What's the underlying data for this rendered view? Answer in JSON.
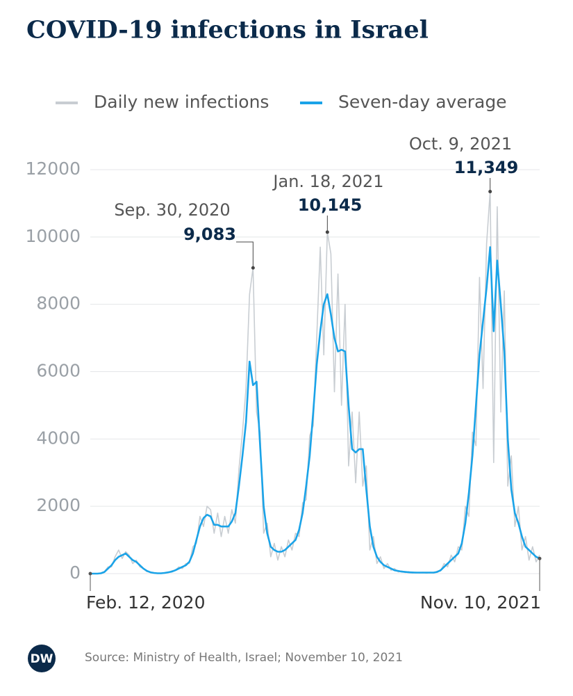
{
  "chart_data": {
    "type": "line",
    "title": "COVID-19 infections in Israel",
    "source": "Source: Ministry of Health, Israel; November 10, 2021",
    "logo": "DW",
    "categories": [
      "Feb. 12, 2020",
      null,
      null,
      null,
      null,
      null,
      null,
      null,
      null,
      null,
      null,
      null,
      null,
      null,
      null,
      null,
      null,
      null,
      null,
      null,
      null,
      null,
      null,
      null,
      null,
      null,
      null,
      null,
      null,
      null,
      null,
      null,
      null,
      null,
      null,
      null,
      null,
      null,
      null,
      null,
      null,
      null,
      null,
      null,
      null,
      null,
      null,
      null,
      null,
      null,
      null,
      null,
      null,
      null,
      null,
      null,
      null,
      null,
      null,
      null,
      null,
      null,
      null,
      null,
      null,
      null,
      null,
      null,
      null,
      null,
      null,
      null,
      null,
      null,
      null,
      null,
      null,
      null,
      null,
      null,
      null,
      null,
      null,
      null,
      null,
      null,
      null,
      null,
      null,
      null,
      null,
      null,
      null,
      null,
      null,
      null,
      null,
      null,
      null,
      null,
      null,
      null,
      null,
      null,
      null,
      null,
      null,
      null,
      null,
      null,
      null,
      null,
      null,
      null,
      null,
      null,
      null,
      null,
      null,
      null,
      null,
      null,
      null,
      null,
      null,
      null,
      null,
      "Nov. 10, 2021"
    ],
    "series": [
      {
        "name": "Daily new infections",
        "color": "#c8cdd2",
        "values": [
          0,
          0,
          0,
          20,
          60,
          200,
          200,
          500,
          700,
          450,
          650,
          550,
          300,
          400,
          200,
          150,
          60,
          50,
          10,
          15,
          5,
          30,
          30,
          80,
          90,
          200,
          150,
          300,
          300,
          800,
          900,
          1700,
          1400,
          2000,
          1900,
          1200,
          1800,
          1100,
          1700,
          1200,
          1900,
          1500,
          3100,
          4200,
          5500,
          8300,
          9083,
          4800,
          4200,
          1200,
          1500,
          500,
          900,
          400,
          800,
          500,
          1000,
          700,
          1200,
          1100,
          2100,
          2200,
          4100,
          4400,
          7000,
          9700,
          6500,
          10145,
          9500,
          5400,
          8900,
          5000,
          8000,
          3200,
          4800,
          2700,
          4800,
          2600,
          3200,
          700,
          1100,
          300,
          500,
          150,
          300,
          100,
          150,
          50,
          80,
          30,
          60,
          20,
          40,
          20,
          40,
          15,
          40,
          20,
          70,
          80,
          300,
          200,
          550,
          350,
          800,
          700,
          2000,
          1700,
          4200,
          3800,
          8800,
          5500,
          9800,
          11349,
          3300,
          10900,
          4800,
          8400,
          2600,
          3500,
          1400,
          2000,
          700,
          1100,
          400,
          800,
          350,
          550
        ]
      },
      {
        "name": "Seven-day average",
        "color": "#1aa3e8",
        "values": [
          0,
          0,
          0,
          10,
          50,
          150,
          250,
          400,
          500,
          550,
          600,
          500,
          400,
          350,
          250,
          150,
          80,
          40,
          20,
          10,
          10,
          20,
          40,
          60,
          100,
          150,
          200,
          250,
          350,
          600,
          1000,
          1400,
          1650,
          1750,
          1700,
          1450,
          1450,
          1400,
          1400,
          1400,
          1550,
          1800,
          2600,
          3500,
          4500,
          6300,
          5600,
          5700,
          3800,
          2000,
          1200,
          800,
          700,
          650,
          650,
          700,
          800,
          900,
          1000,
          1300,
          1800,
          2600,
          3500,
          4800,
          6200,
          7200,
          8000,
          8300,
          7700,
          7000,
          6600,
          6650,
          6600,
          5000,
          3700,
          3600,
          3700,
          3700,
          2500,
          1400,
          800,
          500,
          350,
          250,
          200,
          150,
          100,
          80,
          60,
          50,
          40,
          35,
          30,
          30,
          30,
          30,
          30,
          30,
          50,
          100,
          200,
          300,
          400,
          500,
          600,
          900,
          1500,
          2400,
          3500,
          5000,
          6500,
          7500,
          8500,
          9700,
          7200,
          9300,
          8000,
          6600,
          4000,
          2500,
          1800,
          1500,
          1100,
          800,
          700,
          600,
          500,
          450
        ]
      }
    ],
    "annotations": [
      {
        "date": "Sep. 30, 2020",
        "value": 9083,
        "value_label": "9,083"
      },
      {
        "date": "Jan. 18, 2021",
        "value": 10145,
        "value_label": "10,145"
      },
      {
        "date": "Oct. 9, 2021",
        "value": 11349,
        "value_label": "11,349"
      }
    ],
    "ylim": [
      0,
      12000
    ],
    "yticks": [
      0,
      2000,
      4000,
      6000,
      8000,
      10000,
      12000
    ],
    "grid": true
  }
}
